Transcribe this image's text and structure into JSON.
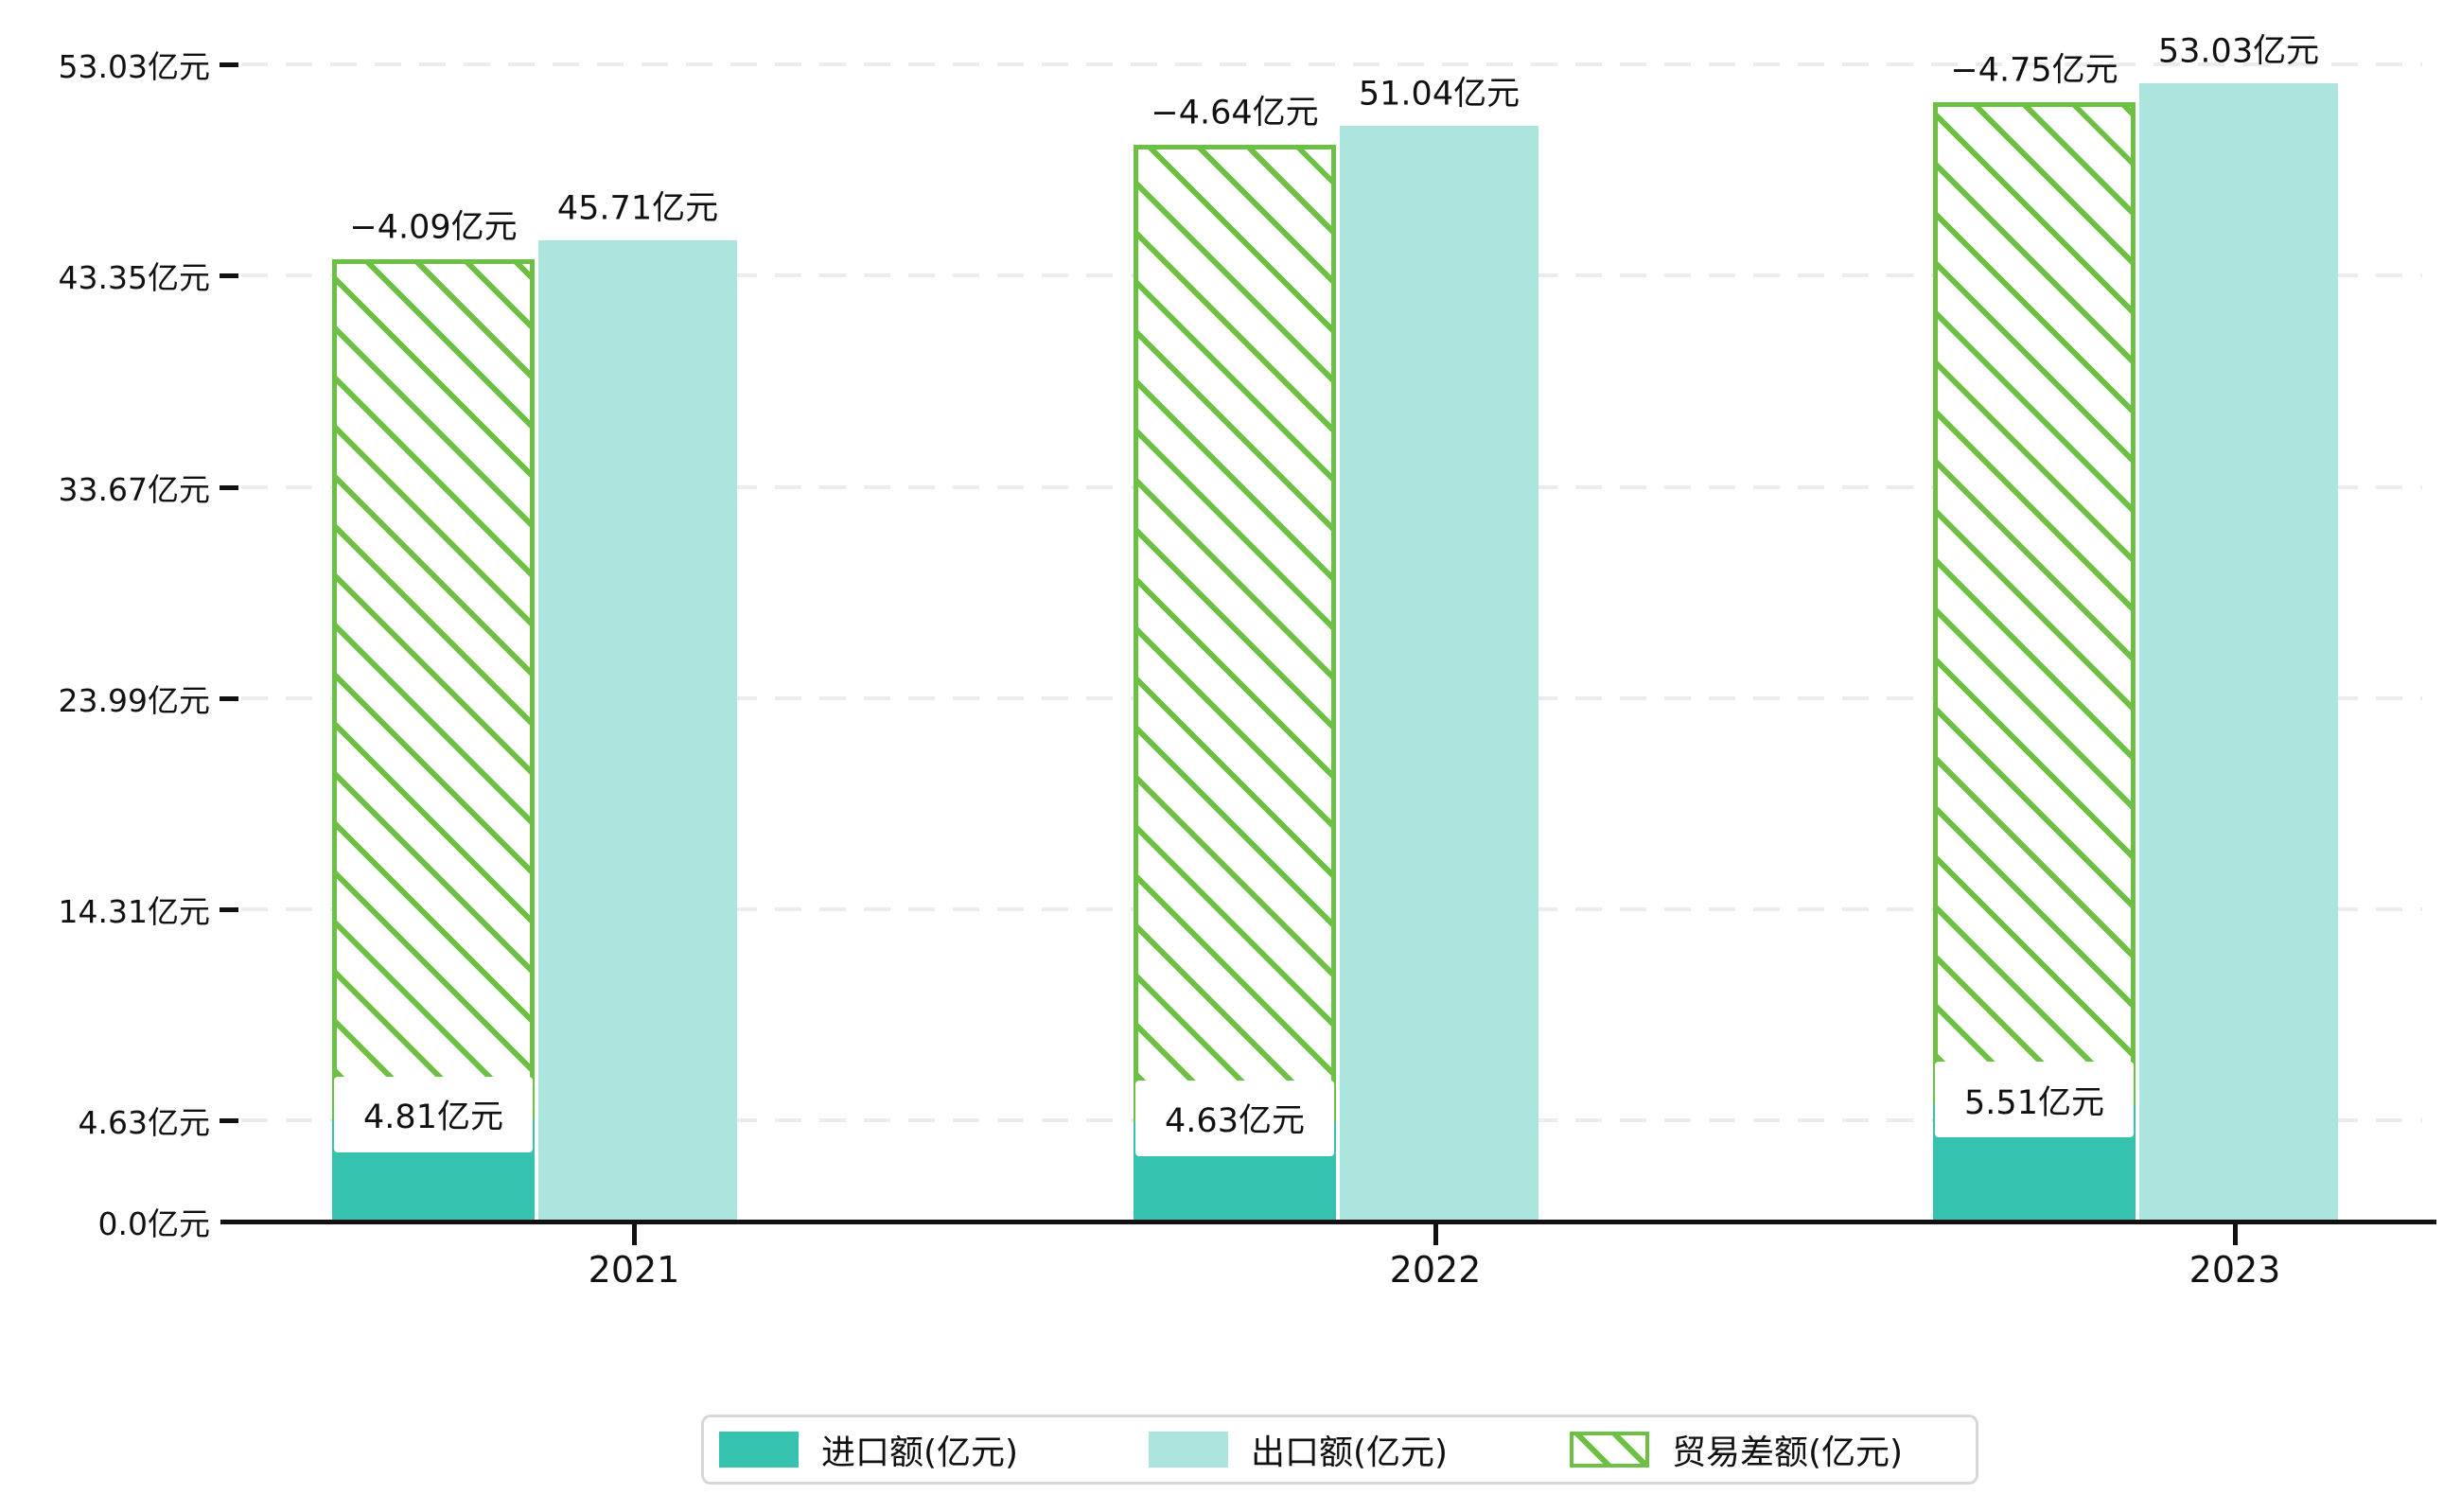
{
  "chart_data": {
    "type": "bar",
    "title": "",
    "categories": [
      "2021",
      "2022",
      "2023"
    ],
    "series": [
      {
        "name": "进口额(亿元)",
        "values": [
          4.81,
          4.63,
          5.51
        ],
        "color": "#35c2ae",
        "style": "solid"
      },
      {
        "name": "出口额(亿元)",
        "values": [
          45.71,
          51.04,
          53.03
        ],
        "color": "#abe5dd",
        "style": "solid"
      },
      {
        "name": "贸易差额(亿元)",
        "values": [
          -4.09,
          -4.64,
          -4.75
        ],
        "color": "#6cc044",
        "style": "hatched"
      }
    ],
    "bar_labels": {
      "import": [
        "4.81亿元",
        "4.63亿元",
        "5.51亿元"
      ],
      "export": [
        "45.71亿元",
        "51.04亿元",
        "53.03亿元"
      ],
      "trade": [
        "−4.09亿元",
        "−4.64亿元",
        "−4.75亿元"
      ]
    },
    "unit": "亿元",
    "y_ticks": [
      0.0,
      4.63,
      14.31,
      23.99,
      33.67,
      43.35,
      53.03
    ],
    "y_tick_labels": [
      "0.0亿元",
      "4.63亿元",
      "14.31亿元",
      "23.99亿元",
      "33.67亿元",
      "43.35亿元",
      "53.03亿元"
    ],
    "ylim": [
      0,
      54.5
    ],
    "xlabel": "",
    "ylabel": "",
    "grid": "horizontal-dashed",
    "legend_position": "bottom"
  },
  "legend": {
    "items": [
      {
        "label": "进口额(亿元)"
      },
      {
        "label": "出口额(亿元)"
      },
      {
        "label": "贸易差额(亿元)"
      }
    ]
  },
  "colors": {
    "import_bar": "#35c2ae",
    "export_bar": "#abe5dd",
    "trade_hatch_green": "#6cc044",
    "gridline": "#ececec",
    "axis": "#111111",
    "legend_border": "#d8d8d8",
    "background": "#ffffff"
  }
}
